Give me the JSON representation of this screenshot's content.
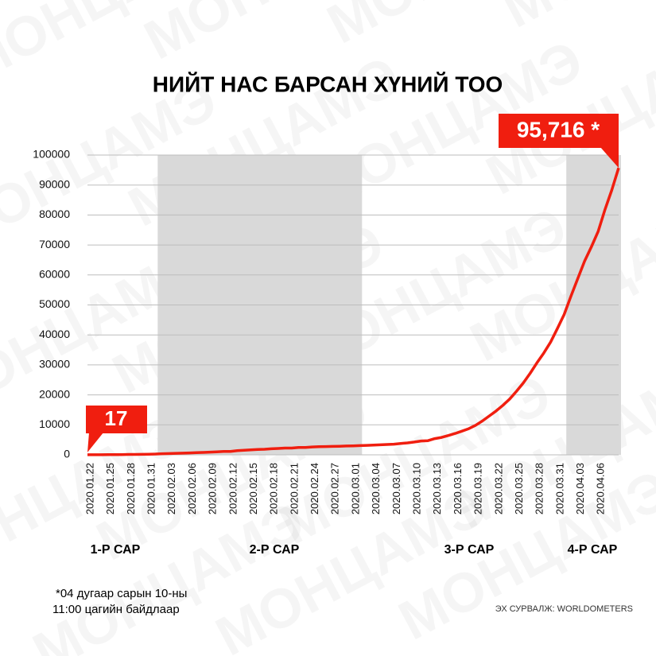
{
  "chart_data": {
    "type": "line",
    "title": "НИЙТ НАС БАРСАН ХҮНИЙ ТОО",
    "watermark": "МОНЦАМЭ",
    "categories": [
      "2020.01.22",
      null,
      null,
      "2020.01.25",
      null,
      null,
      "2020.01.28",
      null,
      null,
      "2020.01.31",
      null,
      null,
      "2020.02.03",
      null,
      null,
      "2020.02.06",
      null,
      null,
      "2020.02.09",
      null,
      null,
      "2020.02.12",
      null,
      null,
      "2020.02.15",
      null,
      null,
      "2020.02.18",
      null,
      null,
      "2020.02.21",
      null,
      null,
      "2020.02.24",
      null,
      null,
      "2020.02.27",
      null,
      null,
      "2020.03.01",
      null,
      null,
      "2020.03.04",
      null,
      null,
      "2020.03.07",
      null,
      null,
      "2020.03.10",
      null,
      null,
      "2020.03.13",
      null,
      null,
      "2020.03.16",
      null,
      null,
      "2020.03.19",
      null,
      null,
      "2020.03.22",
      null,
      null,
      "2020.03.25",
      null,
      null,
      "2020.03.28",
      null,
      null,
      "2020.03.31",
      null,
      null,
      "2020.04.03",
      null,
      null,
      "2020.04.06",
      null,
      null,
      null
    ],
    "values": [
      17,
      18,
      26,
      42,
      56,
      82,
      131,
      133,
      171,
      213,
      259,
      362,
      426,
      492,
      564,
      634,
      719,
      806,
      906,
      1013,
      1113,
      1118,
      1371,
      1523,
      1666,
      1770,
      1868,
      2007,
      2122,
      2247,
      2251,
      2458,
      2469,
      2629,
      2708,
      2770,
      2814,
      2872,
      2941,
      2996,
      3085,
      3160,
      3254,
      3348,
      3460,
      3558,
      3802,
      3988,
      4262,
      4615,
      4720,
      5404,
      5819,
      6440,
      7126,
      7905,
      8733,
      9867,
      11299,
      12973,
      14623,
      16497,
      18615,
      21181,
      23970,
      27198,
      30652,
      33925,
      37582,
      42107,
      46809,
      52983,
      58787,
      64606,
      69374,
      74565,
      81865,
      88338,
      95716
    ],
    "value_labels": [
      "17",
      null,
      null,
      null,
      null,
      null,
      null,
      null,
      null,
      null,
      null,
      null,
      null,
      null,
      null,
      null,
      null,
      null,
      null,
      null,
      null,
      null,
      null,
      null,
      null,
      null,
      null,
      null,
      null,
      null,
      null,
      null,
      null,
      null,
      null,
      null,
      null,
      null,
      null,
      null,
      null,
      null,
      null,
      null,
      null,
      null,
      null,
      null,
      null,
      null,
      null,
      null,
      null,
      null,
      null,
      null,
      null,
      null,
      null,
      null,
      null,
      null,
      null,
      null,
      null,
      null,
      null,
      null,
      null,
      null,
      null,
      null,
      null,
      null,
      null,
      null,
      null,
      null,
      "95,716 *"
    ],
    "color": "#f01e0f",
    "ylim": [
      0,
      100000
    ],
    "yticks": [
      0,
      10000,
      20000,
      30000,
      40000,
      50000,
      60000,
      70000,
      80000,
      90000,
      100000
    ],
    "grid": true,
    "months": [
      {
        "label": "1-Р САР",
        "shaded": false
      },
      {
        "label": "2-Р САР",
        "shaded": true
      },
      {
        "label": "3-Р САР",
        "shaded": false
      },
      {
        "label": "4-Р САР",
        "shaded": true
      }
    ],
    "footnote": [
      "*04 дугаар сарын 10-ны",
      "11:00 цагийн байдлаар"
    ],
    "source": "ЭХ СУРВАЛЖ: WORLDOMETERS"
  }
}
